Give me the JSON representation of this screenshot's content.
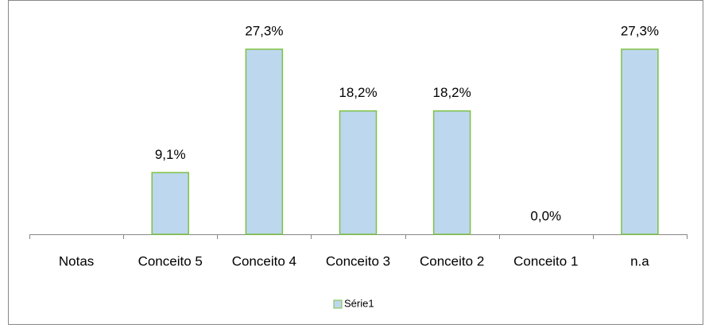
{
  "chart_data": {
    "type": "bar",
    "categories": [
      "Notas",
      "Conceito 5",
      "Conceito 4",
      "Conceito 3",
      "Conceito 2",
      "Conceito 1",
      "n.a"
    ],
    "series": [
      {
        "name": "Série1",
        "fill": "#bdd7ee",
        "color": "#7dc242",
        "values": [
          null,
          9.1,
          27.3,
          18.2,
          18.2,
          0.0,
          27.3
        ],
        "value_labels": [
          null,
          "9,1%",
          "27,3%",
          "18,2%",
          "18,2%",
          "0,0%",
          "27,3%"
        ]
      }
    ],
    "legend": "bottom"
  }
}
